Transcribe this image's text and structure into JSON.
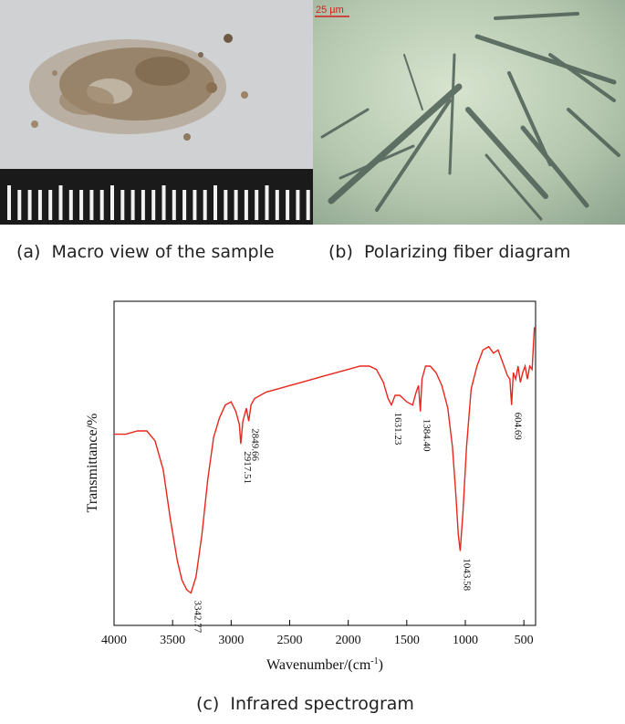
{
  "panels": {
    "a": {
      "caption": "(a)  Macro view of the sample"
    },
    "b": {
      "caption": "(b)  Polarizing fiber diagram",
      "scale_bar": "25 µm"
    },
    "c": {
      "caption": "(c)  Infrared spectrogram"
    }
  },
  "chart_data": {
    "type": "line",
    "title": "",
    "xlabel": "Wavenumber/(cm-1)",
    "xlabel_main": "Wavenumber/(cm",
    "xlabel_sup": "-1",
    "xlabel_end": ")",
    "ylabel": "Transmittance/%",
    "xlim": [
      4000,
      400
    ],
    "ylim": [
      0,
      100
    ],
    "grid": false,
    "series_color": "#e8261c",
    "x_ticks": [
      4000,
      3500,
      3000,
      2500,
      2000,
      1500,
      1000,
      500
    ],
    "x": [
      4000,
      3900,
      3800,
      3720,
      3650,
      3580,
      3520,
      3460,
      3420,
      3380,
      3342.77,
      3300,
      3250,
      3200,
      3150,
      3100,
      3050,
      3000,
      2960,
      2930,
      2917.51,
      2900,
      2870,
      2849.66,
      2830,
      2800,
      2700,
      2600,
      2500,
      2400,
      2300,
      2200,
      2100,
      2000,
      1900,
      1820,
      1760,
      1700,
      1660,
      1631.23,
      1600,
      1560,
      1500,
      1450,
      1420,
      1400,
      1384.4,
      1370,
      1340,
      1300,
      1250,
      1200,
      1150,
      1110,
      1080,
      1060,
      1043.58,
      1020,
      990,
      950,
      900,
      850,
      800,
      760,
      720,
      680,
      640,
      620,
      604.69,
      590,
      570,
      550,
      530,
      510,
      490,
      470,
      450,
      430,
      410
    ],
    "y": [
      59,
      59,
      60,
      60,
      57,
      48,
      33,
      20,
      14,
      11,
      10,
      15,
      28,
      45,
      58,
      64,
      68,
      69,
      66,
      62,
      56,
      63,
      67,
      63,
      68,
      70,
      72,
      73,
      74,
      75,
      76,
      77,
      78,
      79,
      80,
      80,
      79,
      75,
      70,
      68,
      71,
      71,
      69,
      68,
      72,
      74,
      66,
      76,
      80,
      80,
      78,
      74,
      67,
      55,
      40,
      28,
      23,
      35,
      55,
      73,
      80,
      85,
      86,
      84,
      85,
      81,
      77,
      76,
      68,
      78,
      76,
      80,
      75,
      78,
      80,
      76,
      80,
      79,
      92
    ],
    "peak_labels": [
      {
        "x": 3342.77,
        "label": "3342.77"
      },
      {
        "x": 2917.51,
        "label": "2917.51"
      },
      {
        "x": 2849.66,
        "label": "2849.66"
      },
      {
        "x": 1631.23,
        "label": "1631.23"
      },
      {
        "x": 1384.4,
        "label": "1384.40"
      },
      {
        "x": 1043.58,
        "label": "1043.58"
      },
      {
        "x": 604.69,
        "label": "604.69"
      }
    ]
  }
}
